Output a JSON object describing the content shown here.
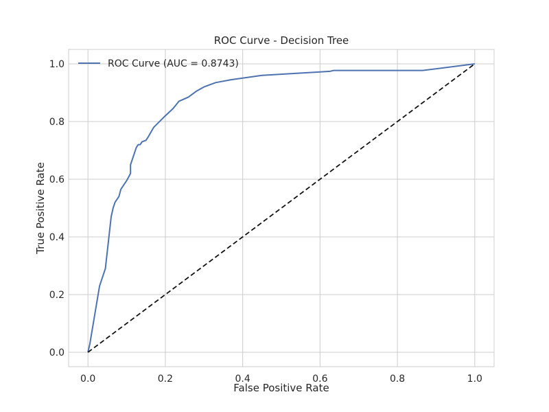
{
  "chart_data": {
    "type": "line",
    "title": "ROC Curve - Decision Tree",
    "xlabel": "False Positive Rate",
    "ylabel": "True Positive Rate",
    "xlim": [
      -0.05,
      1.05
    ],
    "ylim": [
      -0.05,
      1.05
    ],
    "xticks": [
      0.0,
      0.2,
      0.4,
      0.6,
      0.8,
      1.0
    ],
    "yticks": [
      0.0,
      0.2,
      0.4,
      0.6,
      0.8,
      1.0
    ],
    "xtick_labels": [
      "0.0",
      "0.2",
      "0.4",
      "0.6",
      "0.8",
      "1.0"
    ],
    "ytick_labels": [
      "0.0",
      "0.2",
      "0.4",
      "0.6",
      "0.8",
      "1.0"
    ],
    "grid": true,
    "legend_position": "top-left",
    "series": [
      {
        "name": "ROC Curve (AUC = 0.8743)",
        "color": "#4c72b0",
        "style": "solid",
        "x": [
          0.0,
          0.005,
          0.01,
          0.02,
          0.025,
          0.03,
          0.045,
          0.06,
          0.065,
          0.07,
          0.08,
          0.085,
          0.1,
          0.11,
          0.11,
          0.12,
          0.125,
          0.13,
          0.135,
          0.14,
          0.15,
          0.155,
          0.17,
          0.2,
          0.22,
          0.235,
          0.26,
          0.265,
          0.28,
          0.3,
          0.33,
          0.37,
          0.45,
          0.6,
          0.625,
          0.635,
          0.865,
          1.0
        ],
        "y": [
          0.0,
          0.03,
          0.07,
          0.15,
          0.19,
          0.23,
          0.29,
          0.47,
          0.5,
          0.52,
          0.54,
          0.565,
          0.595,
          0.62,
          0.65,
          0.69,
          0.71,
          0.72,
          0.72,
          0.73,
          0.735,
          0.745,
          0.78,
          0.82,
          0.845,
          0.87,
          0.885,
          0.89,
          0.905,
          0.92,
          0.935,
          0.945,
          0.96,
          0.972,
          0.974,
          0.977,
          0.977,
          1.0
        ]
      },
      {
        "name": "",
        "color": "#111111",
        "style": "dashed",
        "x": [
          0.0,
          1.0
        ],
        "y": [
          0.0,
          1.0
        ]
      }
    ]
  }
}
